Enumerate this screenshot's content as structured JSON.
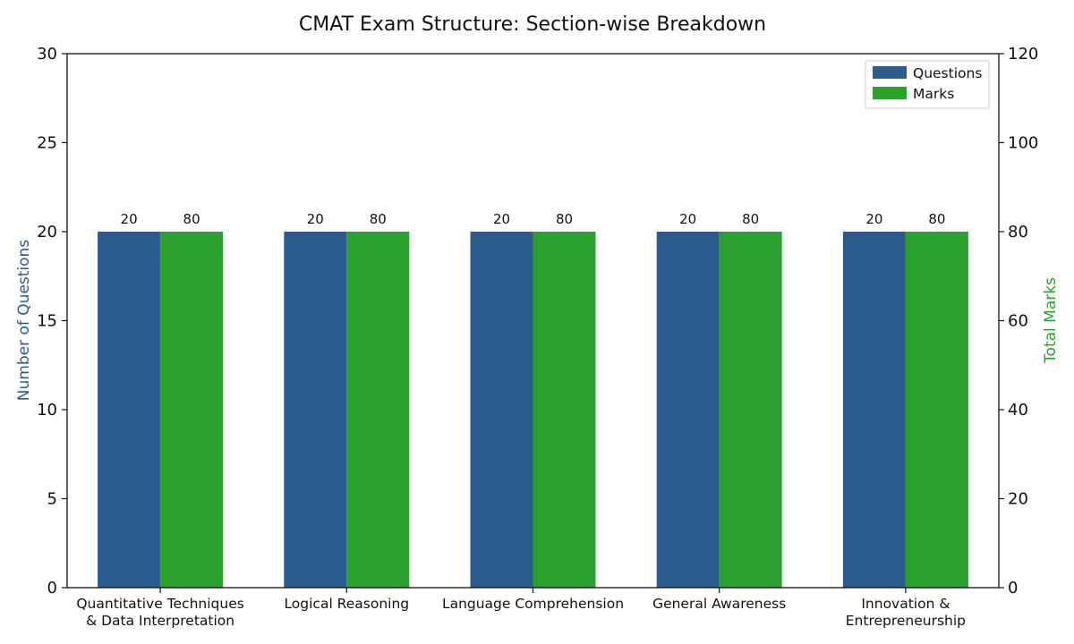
{
  "chart_data": {
    "type": "bar",
    "title": "CMAT Exam Structure: Section-wise Breakdown",
    "categories": [
      [
        "Quantitative Techniques",
        "& Data Interpretation"
      ],
      [
        "Logical Reasoning"
      ],
      [
        "Language Comprehension"
      ],
      [
        "General Awareness"
      ],
      [
        "Innovation &",
        "Entrepreneurship"
      ]
    ],
    "series": [
      {
        "name": "Questions",
        "axis": "left",
        "color": "#2c5b8f",
        "values": [
          20,
          20,
          20,
          20,
          20
        ]
      },
      {
        "name": "Marks",
        "axis": "right",
        "color": "#2ca02c",
        "values": [
          80,
          80,
          80,
          80,
          80
        ]
      }
    ],
    "ylabel": "Number of Questions",
    "ylabel_color": "#2c5b8f",
    "ylim": [
      0,
      30
    ],
    "yticks": [
      "0",
      "5",
      "10",
      "15",
      "20",
      "25",
      "30"
    ],
    "y2label": "Total Marks",
    "y2label_color": "#2ca02c",
    "y2lim": [
      0,
      120
    ],
    "y2ticks": [
      "0",
      "20",
      "40",
      "60",
      "80",
      "100",
      "120"
    ],
    "legend_position": "top-right",
    "grid": false
  }
}
